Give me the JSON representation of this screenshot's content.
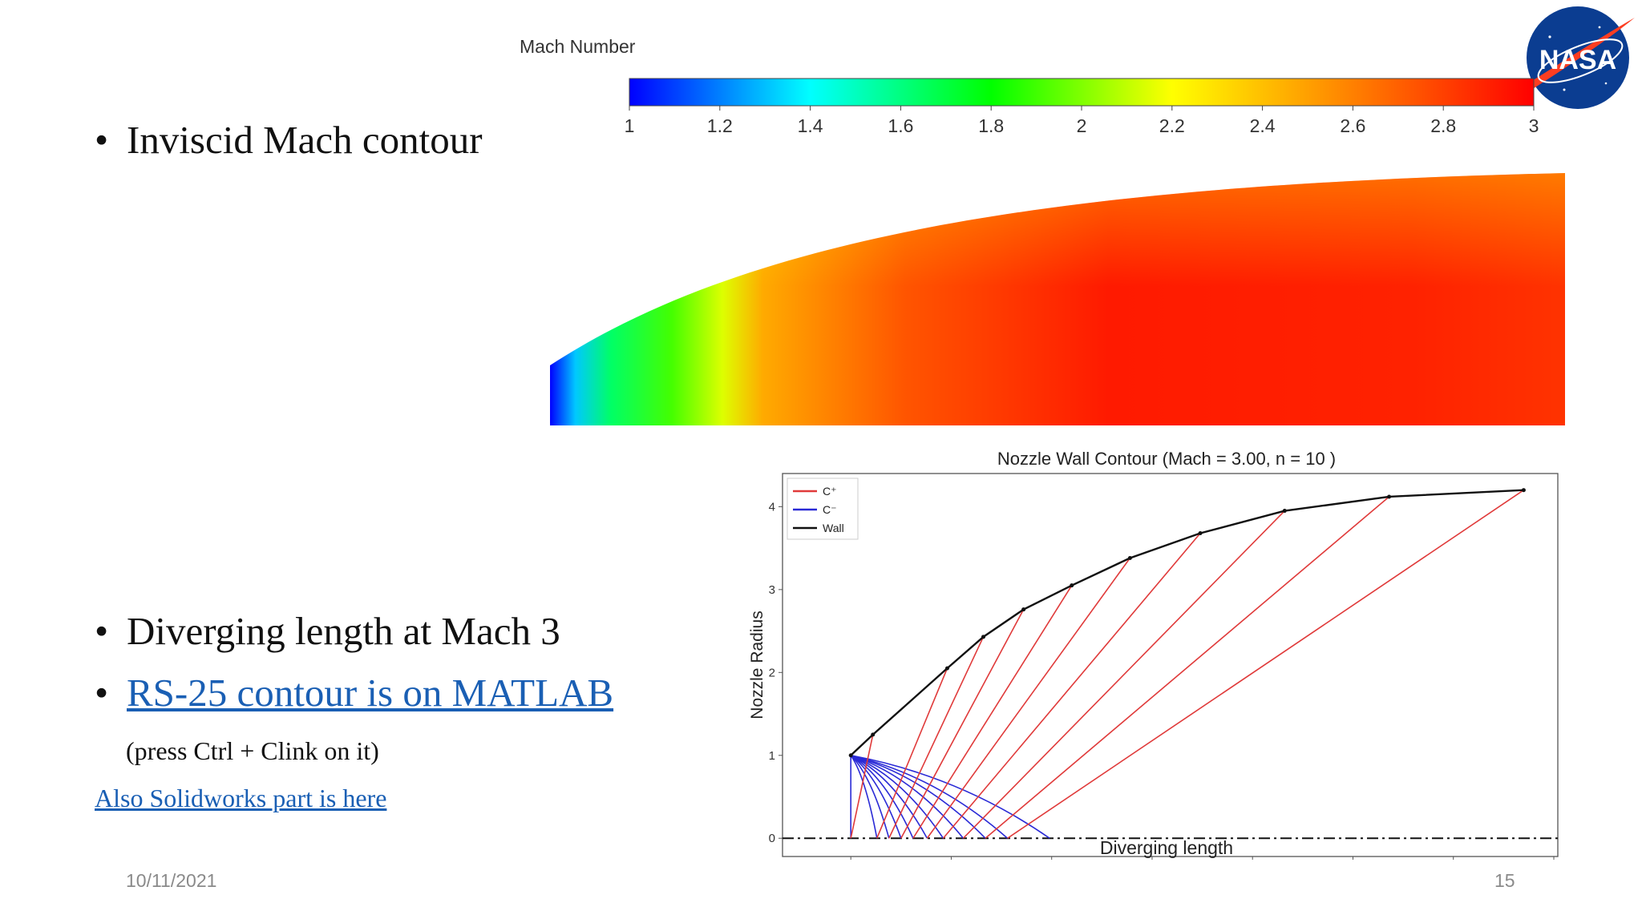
{
  "slide": {
    "bullets": {
      "inviscid": "Inviscid Mach contour",
      "diverging": "Diverging length at Mach 3",
      "rs25_link": "RS-25 contour is on MATLAB",
      "press_note": "(press Ctrl + Clink on it)",
      "solidworks_link": "Also Solidworks part is here"
    },
    "bullet_glyph": "•",
    "date": "10/11/2021",
    "page_number": "15",
    "logo_text": "NASA",
    "colors": {
      "link": "#1a5fb4",
      "logo_blue": "#0b3d91",
      "logo_red": "#fc3d21"
    }
  },
  "chart_data": [
    {
      "type": "heatmap",
      "title": "Mach Number",
      "colorbar": {
        "min": 1,
        "max": 3,
        "ticks": [
          "1",
          "1.2",
          "1.4",
          "1.6",
          "1.8",
          "2",
          "2.2",
          "2.4",
          "2.6",
          "2.8",
          "3"
        ],
        "colormap": [
          "#0000ff",
          "#00ffff",
          "#00ff00",
          "#ffff00",
          "#ff8000",
          "#ff0000"
        ]
      },
      "description_values": {
        "inlet_mach": 1.0,
        "exit_mach": 3.0
      }
    },
    {
      "type": "line",
      "title": "Nozzle Wall Contour (Mach = 3.00, n = 10 )",
      "xlabel": "Diverging length",
      "ylabel": "Nozzle Radius",
      "xlim": [
        -1.7,
        17.6
      ],
      "ylim": [
        -0.22,
        4.4
      ],
      "xticks": [
        "0.0",
        "2.5",
        "5.0",
        "7.5",
        "10.0",
        "12.5",
        "15.0",
        "17.5"
      ],
      "yticks": [
        "0",
        "1",
        "2",
        "3",
        "4"
      ],
      "legend": {
        "position": "top-left",
        "entries": [
          {
            "label": "C⁺",
            "color": "#e03a3a"
          },
          {
            "label": "C⁻",
            "color": "#2a2ad6"
          },
          {
            "label": "Wall",
            "color": "#111111"
          }
        ]
      },
      "wall": {
        "x": [
          0.0,
          0.55,
          2.4,
          3.3,
          4.3,
          5.5,
          6.95,
          8.7,
          10.8,
          13.4,
          16.75
        ],
        "y": [
          1.0,
          1.25,
          2.05,
          2.43,
          2.76,
          3.05,
          3.38,
          3.68,
          3.95,
          4.12,
          4.2
        ]
      },
      "c_minus_axis_x": [
        0.0,
        0.65,
        0.95,
        1.25,
        1.55,
        1.9,
        2.3,
        2.8,
        3.35,
        3.9,
        4.95
      ],
      "c_plus_segments": [
        {
          "x0": 0.0,
          "y0": 0.0,
          "x1": 0.55,
          "y1": 1.25
        },
        {
          "x0": 0.65,
          "y0": 0.0,
          "x1": 2.4,
          "y1": 2.05
        },
        {
          "x0": 0.95,
          "y0": 0.0,
          "x1": 3.3,
          "y1": 2.43
        },
        {
          "x0": 1.25,
          "y0": 0.0,
          "x1": 4.3,
          "y1": 2.76
        },
        {
          "x0": 1.55,
          "y0": 0.0,
          "x1": 5.5,
          "y1": 3.05
        },
        {
          "x0": 1.9,
          "y0": 0.0,
          "x1": 6.95,
          "y1": 3.38
        },
        {
          "x0": 2.3,
          "y0": 0.0,
          "x1": 8.7,
          "y1": 3.68
        },
        {
          "x0": 2.8,
          "y0": 0.0,
          "x1": 10.8,
          "y1": 3.95
        },
        {
          "x0": 3.35,
          "y0": 0.0,
          "x1": 13.4,
          "y1": 4.12
        },
        {
          "x0": 3.9,
          "y0": 0.0,
          "x1": 16.75,
          "y1": 4.2
        }
      ],
      "centerline_y": 0,
      "c_minus_origin": {
        "x": 0.0,
        "y": 1.0
      }
    }
  ]
}
